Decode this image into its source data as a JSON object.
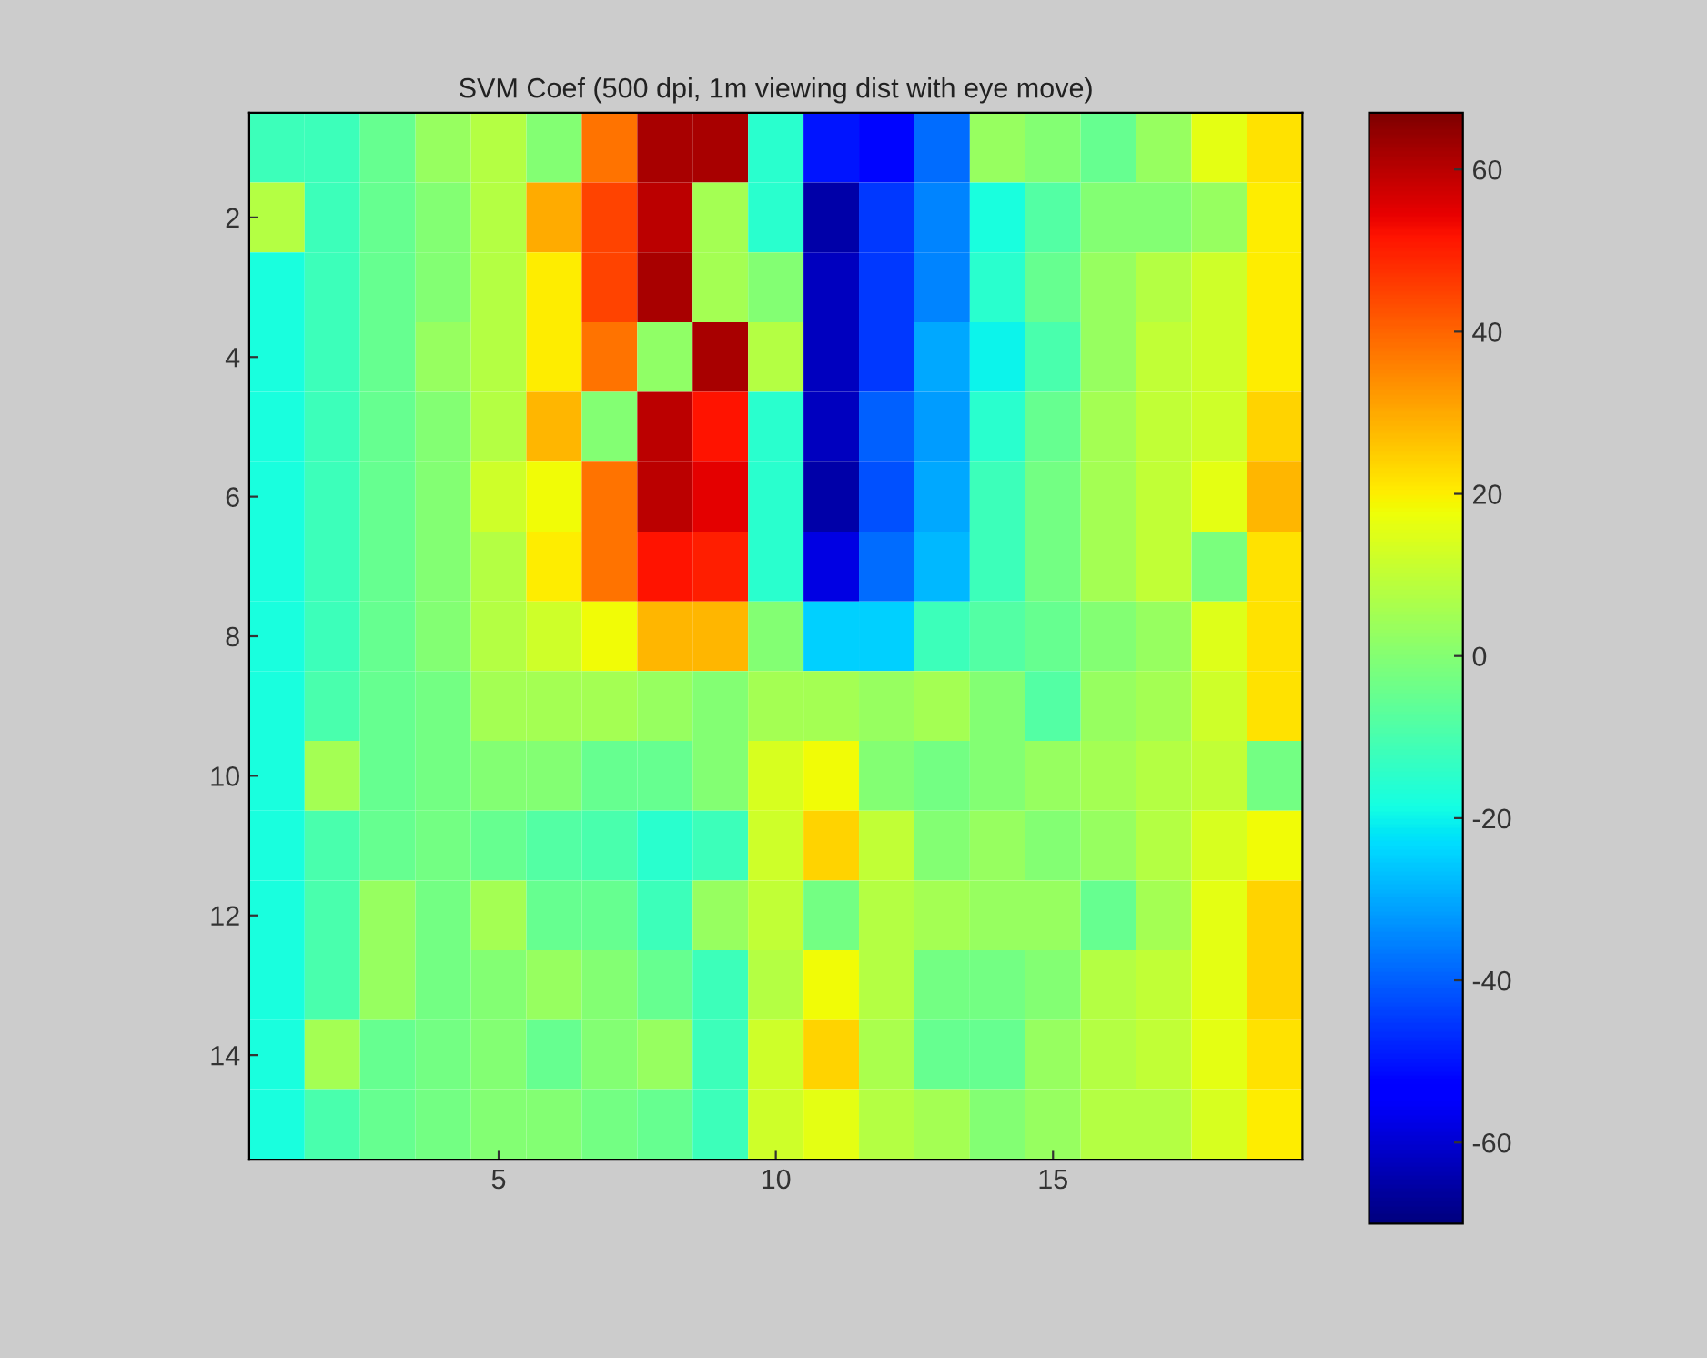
{
  "chart_data": {
    "type": "heatmap",
    "title": "SVM Coef (500 dpi, 1m viewing dist with eye move)",
    "x": [
      1,
      2,
      3,
      4,
      5,
      6,
      7,
      8,
      9,
      10,
      11,
      12,
      13,
      14,
      15,
      16,
      17,
      18,
      19
    ],
    "y": [
      1,
      2,
      3,
      4,
      5,
      6,
      7,
      8,
      9,
      10,
      11,
      12,
      13,
      14,
      15
    ],
    "xlim": [
      0.5,
      19.5
    ],
    "ylim": [
      15.5,
      0.5
    ],
    "xticks": [
      5,
      10,
      15
    ],
    "yticks": [
      2,
      4,
      6,
      8,
      10,
      12,
      14
    ],
    "clim": [
      -70,
      67
    ],
    "cticks": [
      -60,
      -40,
      -20,
      0,
      20,
      40,
      60
    ],
    "cells": [
      [
        -12,
        -12,
        -5,
        3,
        8,
        0,
        38,
        62,
        62,
        -15,
        -50,
        -52,
        -38,
        3,
        0,
        -5,
        3,
        16,
        22
      ],
      [
        8,
        -12,
        -5,
        0,
        8,
        30,
        45,
        60,
        5,
        -15,
        -65,
        -45,
        -35,
        -18,
        -8,
        0,
        0,
        3,
        20
      ],
      [
        -18,
        -12,
        -5,
        0,
        8,
        20,
        45,
        62,
        5,
        0,
        -62,
        -45,
        -35,
        -15,
        -5,
        3,
        8,
        12,
        20
      ],
      [
        -18,
        -12,
        -5,
        3,
        8,
        20,
        38,
        2,
        62,
        8,
        -62,
        -45,
        -30,
        -20,
        -10,
        3,
        10,
        12,
        20
      ],
      [
        -18,
        -12,
        -5,
        0,
        8,
        28,
        0,
        60,
        52,
        -15,
        -62,
        -40,
        -32,
        -15,
        -5,
        5,
        10,
        12,
        24
      ],
      [
        -18,
        -12,
        -5,
        0,
        12,
        18,
        38,
        60,
        55,
        -15,
        -65,
        -42,
        -30,
        -12,
        -3,
        5,
        10,
        16,
        28
      ],
      [
        -18,
        -12,
        -5,
        0,
        8,
        20,
        38,
        52,
        50,
        -15,
        -58,
        -38,
        -28,
        -12,
        -3,
        5,
        10,
        -2,
        22
      ],
      [
        -18,
        -12,
        -5,
        0,
        8,
        12,
        18,
        28,
        28,
        0,
        -25,
        -25,
        -12,
        -8,
        -5,
        0,
        3,
        15,
        22
      ],
      [
        -18,
        -10,
        -5,
        -3,
        5,
        5,
        5,
        3,
        0,
        5,
        5,
        3,
        5,
        0,
        -8,
        3,
        5,
        12,
        22
      ],
      [
        -18,
        5,
        -5,
        -3,
        0,
        0,
        -5,
        -5,
        0,
        14,
        18,
        0,
        -3,
        0,
        3,
        5,
        8,
        10,
        -3
      ],
      [
        -18,
        -10,
        -5,
        -3,
        -5,
        -8,
        -10,
        -15,
        -12,
        12,
        24,
        10,
        0,
        3,
        0,
        3,
        8,
        14,
        18
      ],
      [
        -18,
        -10,
        3,
        -3,
        5,
        -5,
        -5,
        -12,
        3,
        10,
        -3,
        8,
        5,
        3,
        3,
        -5,
        5,
        16,
        24
      ],
      [
        -18,
        -10,
        3,
        -3,
        0,
        3,
        0,
        -5,
        -12,
        8,
        18,
        8,
        -3,
        -3,
        0,
        8,
        10,
        16,
        24
      ],
      [
        -18,
        5,
        -5,
        -3,
        0,
        -5,
        0,
        3,
        -12,
        12,
        24,
        6,
        -5,
        -5,
        3,
        8,
        10,
        16,
        22
      ],
      [
        -18,
        -10,
        -5,
        -3,
        0,
        0,
        -3,
        -5,
        -12,
        12,
        16,
        8,
        5,
        0,
        3,
        8,
        8,
        14,
        20
      ]
    ]
  }
}
